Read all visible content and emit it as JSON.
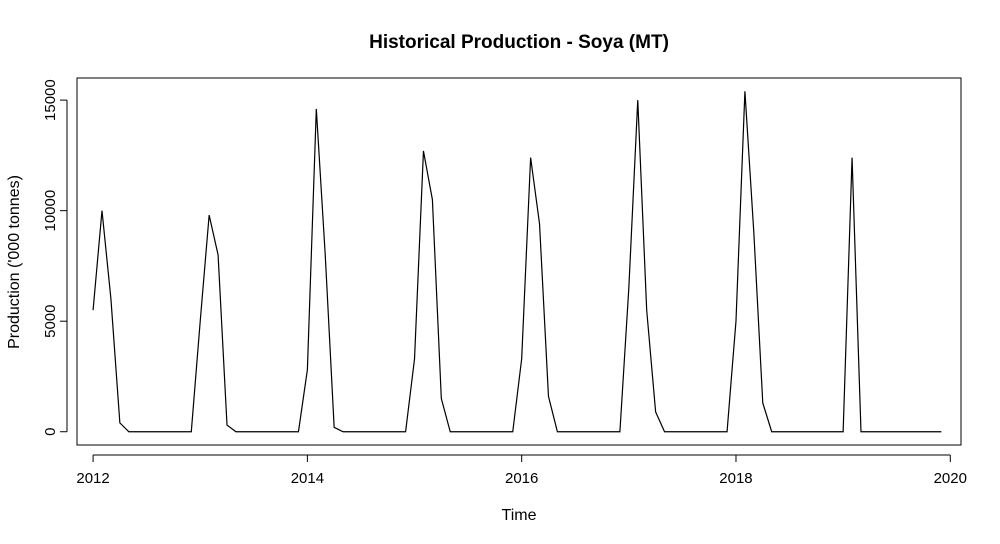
{
  "chart_data": {
    "type": "line",
    "title": "Historical Production - Soya (MT)",
    "xlabel": "Time",
    "ylabel": "Production ('000 tonnes)",
    "xlim": [
      2011.85,
      2020.1
    ],
    "ylim": [
      -600,
      16000
    ],
    "x_ticks": [
      2012,
      2014,
      2016,
      2018,
      2020
    ],
    "y_ticks": [
      0,
      5000,
      10000,
      15000
    ],
    "x_tick_labels": [
      "2012",
      "2014",
      "2016",
      "2018",
      "2020"
    ],
    "y_tick_labels": [
      "0",
      "5000",
      "10000",
      "15000"
    ],
    "grid": false,
    "line_color": "#000000",
    "series": [
      {
        "frequency": "monthly",
        "start": "2012-01",
        "values": [
          5500,
          10000,
          6000,
          400,
          0,
          0,
          0,
          0,
          0,
          0,
          0,
          0,
          5000,
          9800,
          8000,
          300,
          0,
          0,
          0,
          0,
          0,
          0,
          0,
          0,
          2800,
          14600,
          8000,
          200,
          0,
          0,
          0,
          0,
          0,
          0,
          0,
          0,
          3300,
          12700,
          10500,
          1500,
          0,
          0,
          0,
          0,
          0,
          0,
          0,
          0,
          3300,
          12400,
          9400,
          1600,
          0,
          0,
          0,
          0,
          0,
          0,
          0,
          0,
          6500,
          15000,
          5500,
          900,
          0,
          0,
          0,
          0,
          0,
          0,
          0,
          0,
          5000,
          15400,
          9000,
          1300,
          0,
          0,
          0,
          0,
          0,
          0,
          0,
          0,
          0,
          12400,
          0,
          0,
          0,
          0,
          0,
          0,
          0,
          0,
          0,
          0
        ]
      }
    ]
  }
}
